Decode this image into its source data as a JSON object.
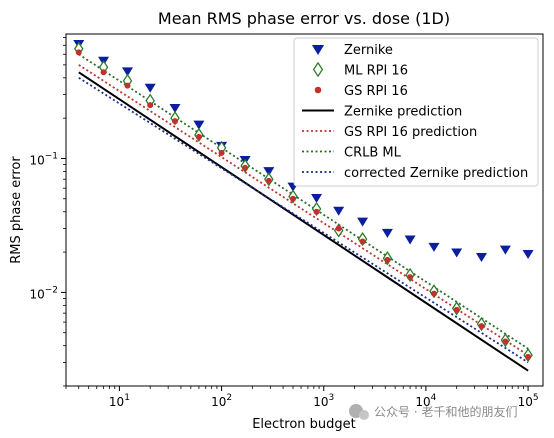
{
  "chart_data": {
    "type": "scatter",
    "title": "Mean RMS phase error vs. dose (1D)",
    "xlabel": "Electron budget",
    "ylabel": "RMS phase error",
    "xscale": "log",
    "yscale": "log",
    "xlim": [
      3,
      140000
    ],
    "ylim": [
      0.002,
      0.85
    ],
    "x_ticks": [
      {
        "value": 10,
        "base": "10",
        "exp": "1"
      },
      {
        "value": 100,
        "base": "10",
        "exp": "2"
      },
      {
        "value": 1000,
        "base": "10",
        "exp": "3"
      },
      {
        "value": 10000,
        "base": "10",
        "exp": "4"
      },
      {
        "value": 100000,
        "base": "10",
        "exp": "5"
      }
    ],
    "y_ticks": [
      {
        "value": 0.01,
        "base": "10",
        "exp": "−2"
      },
      {
        "value": 0.1,
        "base": "10",
        "exp": "−1"
      }
    ],
    "x": [
      4,
      7,
      12,
      20,
      35,
      60,
      100,
      170,
      290,
      500,
      850,
      1400,
      2400,
      4200,
      7000,
      12000,
      20000,
      35000,
      60000,
      100000
    ],
    "legend_position": "top-right",
    "series": [
      {
        "name": "Zernike",
        "kind": "marker",
        "marker": "triangle-down",
        "color": "#0a1e9e",
        "values": [
          0.72,
          0.54,
          0.45,
          0.34,
          0.24,
          0.18,
          0.125,
          0.098,
          0.081,
          0.062,
          0.051,
          0.041,
          0.034,
          0.028,
          0.025,
          0.022,
          0.02,
          0.0185,
          0.021,
          0.0195
        ]
      },
      {
        "name": "ML RPI 16",
        "kind": "marker",
        "marker": "diamond-open",
        "color": "#2a7d2a",
        "values": [
          0.66,
          0.48,
          0.38,
          0.27,
          0.2,
          0.15,
          0.12,
          0.088,
          0.07,
          0.052,
          0.042,
          0.029,
          0.025,
          0.018,
          0.0135,
          0.0102,
          0.0076,
          0.0058,
          0.0044,
          0.0034
        ]
      },
      {
        "name": "GS RPI 16",
        "kind": "marker",
        "marker": "dot",
        "color": "#c0322b",
        "values": [
          0.62,
          0.44,
          0.35,
          0.25,
          0.19,
          0.145,
          0.11,
          0.085,
          0.068,
          0.05,
          0.04,
          0.03,
          0.024,
          0.0175,
          0.013,
          0.0098,
          0.0074,
          0.0056,
          0.0043,
          0.0033
        ]
      },
      {
        "name": "Zernike prediction",
        "kind": "line",
        "dash": "solid",
        "color": "#000000",
        "x": [
          4,
          100000
        ],
        "values": [
          0.44,
          0.0026
        ]
      },
      {
        "name": "GS RPI 16 prediction",
        "kind": "line",
        "dash": "dotted",
        "color": "#c0322b",
        "x": [
          4,
          100000
        ],
        "values": [
          0.5,
          0.0034
        ]
      },
      {
        "name": "CRLB ML",
        "kind": "line",
        "dash": "dotted",
        "color": "#2a6b2a",
        "x": [
          4,
          100000
        ],
        "values": [
          0.6,
          0.0038
        ]
      },
      {
        "name": "corrected Zernike prediction",
        "kind": "line",
        "dash": "dotted",
        "color": "#1a2a8a",
        "x": [
          4,
          100000
        ],
        "values": [
          0.4,
          0.003
        ]
      }
    ]
  },
  "watermark": {
    "text": "公众号 · 老千和他的朋友们"
  }
}
